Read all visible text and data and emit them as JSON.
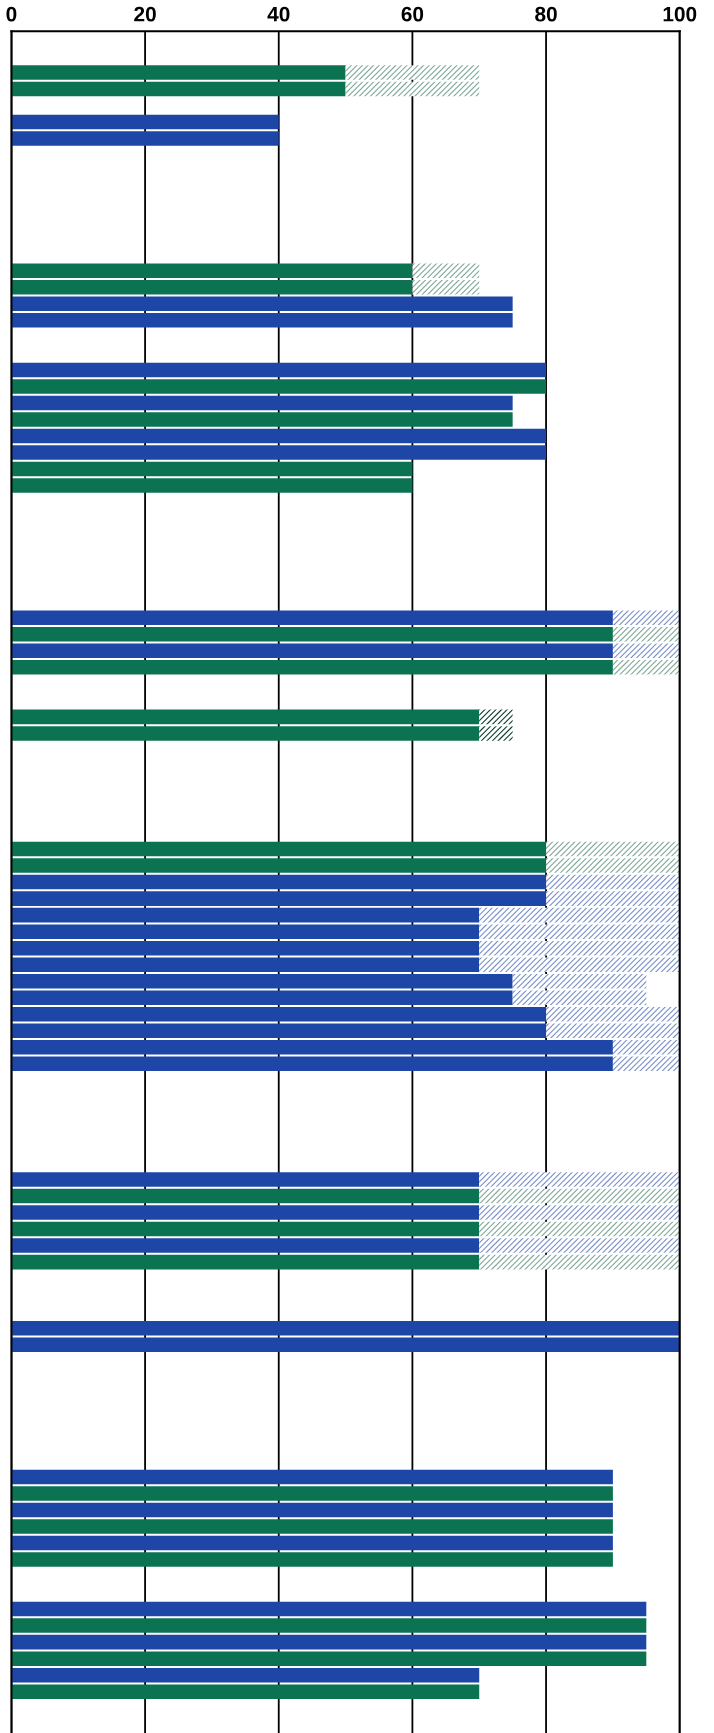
{
  "chart_data": {
    "type": "bar",
    "orientation": "horizontal",
    "stacked": true,
    "categories": [
      null,
      null,
      null,
      null,
      null,
      null,
      null,
      null,
      null,
      null,
      null,
      null,
      null,
      null,
      null,
      null,
      null,
      null,
      null,
      null,
      null,
      null,
      null,
      null,
      null,
      null,
      null,
      null,
      null,
      null,
      null,
      null,
      null,
      null,
      null,
      null,
      null,
      null,
      null,
      null,
      null,
      null,
      null,
      null,
      null,
      null,
      null,
      null,
      null,
      null,
      null,
      null,
      null,
      null,
      null,
      null,
      null,
      null,
      null,
      null,
      null,
      null,
      null,
      null,
      null,
      null,
      null,
      null,
      null,
      null,
      null,
      null,
      null,
      null,
      null,
      null,
      null,
      null,
      null,
      null,
      null,
      null,
      null,
      null,
      null,
      null,
      null,
      null,
      null,
      null,
      null,
      null,
      null,
      null,
      null,
      null,
      null,
      null,
      null,
      null,
      null,
      null,
      null
    ],
    "xlim": [
      0,
      100
    ],
    "xticks": [
      0,
      20,
      40,
      60,
      80,
      100
    ],
    "grid": "x",
    "tick_labels": "x",
    "series": [
      {
        "values": [
          null,
          null,
          50,
          50,
          null,
          40,
          40,
          null,
          null,
          null,
          null,
          null,
          null,
          null,
          60,
          60,
          75,
          75,
          null,
          null,
          80,
          80,
          75,
          75,
          80,
          80,
          60,
          60,
          null,
          null,
          null,
          null,
          null,
          null,
          null,
          90,
          90,
          90,
          90,
          null,
          null,
          70,
          70,
          null,
          null,
          null,
          null,
          null,
          null,
          80,
          80,
          80,
          80,
          70,
          70,
          70,
          70,
          75,
          75,
          80,
          80,
          90,
          90,
          null,
          null,
          null,
          null,
          null,
          null,
          70,
          70,
          70,
          70,
          70,
          70,
          null,
          null,
          null,
          100,
          100,
          null,
          null,
          null,
          null,
          null,
          null,
          null,
          90,
          90,
          90,
          90,
          90,
          90,
          null,
          null,
          95,
          95,
          95,
          95,
          70,
          70,
          null,
          null
        ],
        "colors": [
          null,
          null,
          "#0b7352",
          "#0b7352",
          null,
          "#1e46a6",
          "#1e46a6",
          null,
          null,
          null,
          null,
          null,
          null,
          null,
          "#0b7352",
          "#0b7352",
          "#1e46a6",
          "#1e46a6",
          null,
          null,
          "#1e46a6",
          "#0b7352",
          "#1e46a6",
          "#0b7352",
          "#1e46a6",
          "#1e46a6",
          "#0b7352",
          "#0b7352",
          null,
          null,
          null,
          null,
          null,
          null,
          null,
          "#1e46a6",
          "#0b7352",
          "#1e46a6",
          "#0b7352",
          null,
          null,
          "#0b7352",
          "#0b7352",
          null,
          null,
          null,
          null,
          null,
          null,
          "#0b7352",
          "#0b7352",
          "#1e46a6",
          "#1e46a6",
          "#1e46a6",
          "#1e46a6",
          "#1e46a6",
          "#1e46a6",
          "#1e46a6",
          "#1e46a6",
          "#1e46a6",
          "#1e46a6",
          "#1e46a6",
          "#1e46a6",
          null,
          null,
          null,
          null,
          null,
          null,
          "#1e46a6",
          "#0b7352",
          "#1e46a6",
          "#0b7352",
          "#1e46a6",
          "#0b7352",
          null,
          null,
          null,
          "#1e46a6",
          "#1e46a6",
          null,
          null,
          null,
          null,
          null,
          null,
          null,
          "#1e46a6",
          "#0b7352",
          "#1e46a6",
          "#0b7352",
          "#1e46a6",
          "#0b7352",
          null,
          null,
          "#1e46a6",
          "#0b7352",
          "#1e46a6",
          "#0b7352",
          "#1e46a6",
          "#0b7352",
          null,
          null
        ]
      },
      {
        "values": [
          null,
          null,
          20,
          20,
          null,
          null,
          null,
          null,
          null,
          null,
          null,
          null,
          null,
          null,
          10,
          10,
          null,
          null,
          null,
          null,
          null,
          null,
          null,
          null,
          null,
          null,
          null,
          null,
          null,
          null,
          null,
          null,
          null,
          null,
          null,
          10,
          10,
          10,
          10,
          null,
          null,
          5,
          5,
          null,
          null,
          null,
          null,
          null,
          null,
          20,
          20,
          20,
          20,
          30,
          30,
          30,
          30,
          20,
          20,
          20,
          20,
          10,
          10,
          null,
          null,
          null,
          null,
          null,
          null,
          30,
          30,
          30,
          30,
          30,
          30,
          null,
          null,
          null,
          null,
          null,
          null,
          null,
          null,
          null,
          null,
          null,
          null,
          null,
          null,
          null,
          null,
          null,
          null,
          null,
          null,
          null,
          null,
          null,
          null,
          null,
          null,
          null,
          null
        ],
        "colors": [
          null,
          null,
          "#7fa898",
          "#7fa898",
          null,
          null,
          null,
          null,
          null,
          null,
          null,
          null,
          null,
          null,
          "#7fa898",
          "#7fa898",
          null,
          null,
          null,
          null,
          null,
          null,
          null,
          null,
          null,
          null,
          null,
          null,
          null,
          null,
          null,
          null,
          null,
          null,
          null,
          "#7b90c8",
          "#7fa898",
          "#7b90c8",
          "#7fa898",
          null,
          null,
          "#0a3d2a",
          "#0a3d2a",
          null,
          null,
          null,
          null,
          null,
          null,
          "#7fa898",
          "#7fa898",
          "#7b90c8",
          "#7b90c8",
          "#7b90c8",
          "#7b90c8",
          "#7b90c8",
          "#7b90c8",
          "#7b90c8",
          "#7b90c8",
          "#7b90c8",
          "#7b90c8",
          "#7b90c8",
          "#7b90c8",
          null,
          null,
          null,
          null,
          null,
          null,
          "#7b90c8",
          "#7fa898",
          "#7b90c8",
          "#7fa898",
          "#7b90c8",
          "#7fa898",
          null,
          null,
          null,
          null,
          null,
          null,
          null,
          null,
          null,
          null,
          null,
          null,
          null,
          null,
          null,
          null,
          null,
          null,
          null,
          null,
          null,
          null,
          null,
          null,
          null,
          null,
          null,
          null
        ]
      }
    ]
  }
}
